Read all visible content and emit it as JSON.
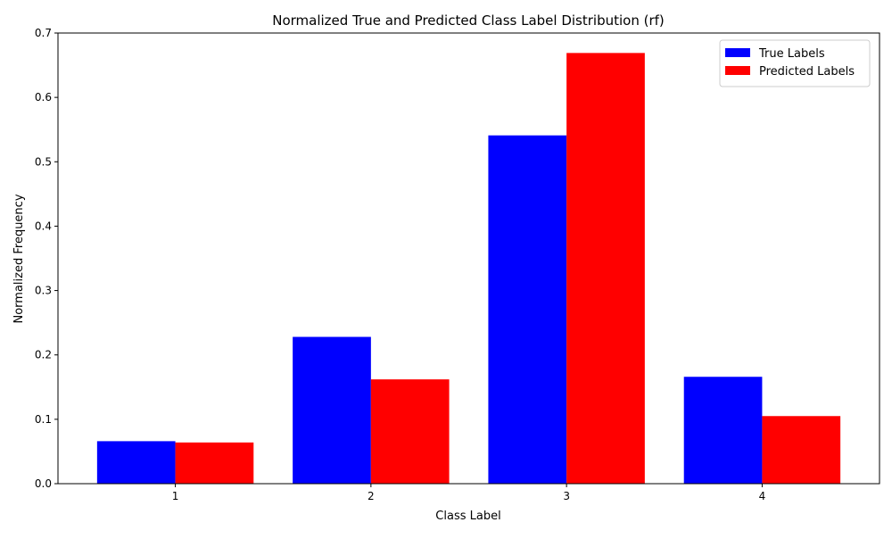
{
  "chart_data": {
    "type": "bar",
    "title": "Normalized True and Predicted Class Label Distribution (rf)",
    "xlabel": "Class Label",
    "ylabel": "Normalized Frequency",
    "categories": [
      "1",
      "2",
      "3",
      "4"
    ],
    "series": [
      {
        "name": "True Labels",
        "color": "#0000ff",
        "values": [
          0.066,
          0.228,
          0.541,
          0.166
        ]
      },
      {
        "name": "Predicted Labels",
        "color": "#ff0000",
        "values": [
          0.064,
          0.162,
          0.669,
          0.105
        ]
      }
    ],
    "ylim": [
      0,
      0.7
    ],
    "yticks": [
      "0.0",
      "0.1",
      "0.2",
      "0.3",
      "0.4",
      "0.5",
      "0.6",
      "0.7"
    ],
    "grid": false,
    "legend_position": "top-right"
  }
}
